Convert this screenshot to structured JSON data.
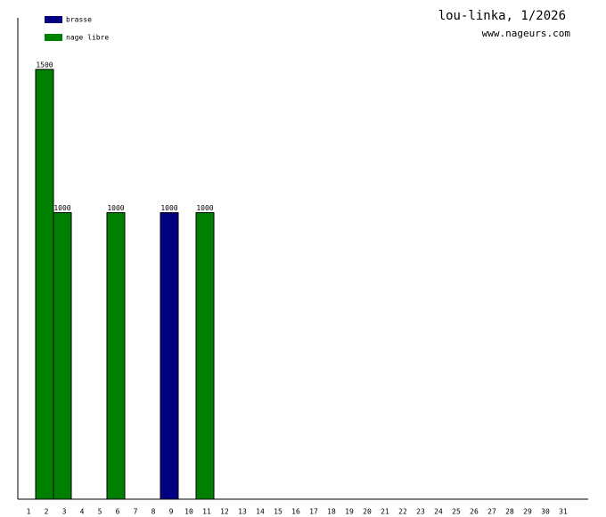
{
  "chart_data": {
    "type": "bar",
    "title": "lou-linka, 1/2026",
    "subtitle": "www.nageurs.com",
    "categories": [
      "1",
      "2",
      "3",
      "4",
      "5",
      "6",
      "7",
      "8",
      "9",
      "10",
      "11",
      "12",
      "13",
      "14",
      "15",
      "16",
      "17",
      "18",
      "19",
      "20",
      "21",
      "22",
      "23",
      "24",
      "25",
      "26",
      "27",
      "28",
      "29",
      "30",
      "31"
    ],
    "series": [
      {
        "name": "brasse",
        "color": "#000080",
        "values": [
          null,
          null,
          null,
          null,
          null,
          null,
          null,
          null,
          1000,
          null,
          null,
          null,
          null,
          null,
          null,
          null,
          null,
          null,
          null,
          null,
          null,
          null,
          null,
          null,
          null,
          null,
          null,
          null,
          null,
          null,
          null
        ]
      },
      {
        "name": "nage libre",
        "color": "#008000",
        "values": [
          null,
          1500,
          1000,
          null,
          null,
          1000,
          null,
          null,
          null,
          null,
          1000,
          null,
          null,
          null,
          null,
          null,
          null,
          null,
          null,
          null,
          null,
          null,
          null,
          null,
          null,
          null,
          null,
          null,
          null,
          null,
          null
        ]
      }
    ],
    "ylim": [
      0,
      1680
    ],
    "legend": "top-left"
  }
}
